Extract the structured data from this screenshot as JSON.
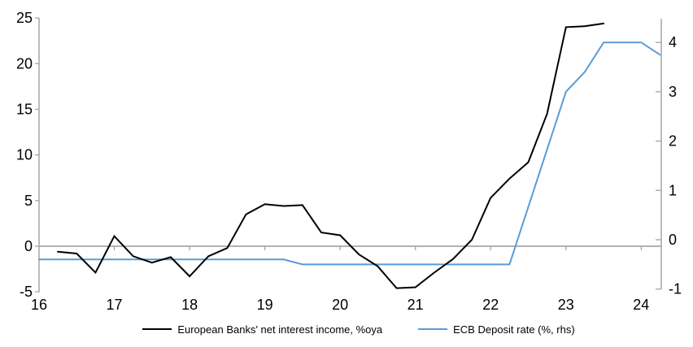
{
  "chart_data": {
    "type": "line",
    "title": "",
    "x_axis": {
      "label": "",
      "ticks": [
        "16",
        "17",
        "18",
        "19",
        "20",
        "21",
        "22",
        "23",
        "24"
      ],
      "range": [
        16,
        24.27
      ],
      "unit": "year"
    },
    "left_axis": {
      "label": "",
      "ticks": [
        -5,
        0,
        5,
        10,
        15,
        20,
        25
      ],
      "range": [
        -5,
        25
      ]
    },
    "right_axis": {
      "label": "",
      "ticks": [
        -1,
        0,
        1,
        2,
        3,
        4
      ],
      "range": [
        -1,
        4.5
      ]
    },
    "grid": "zero-line-only",
    "legend_position": "bottom",
    "colors": {
      "axis": "#a6a6a6",
      "text": "#000000"
    },
    "series": [
      {
        "name": "European Banks' net interest income, %oya",
        "axis": "left",
        "color": "#000000",
        "x": [
          16.25,
          16.5,
          16.75,
          17.0,
          17.25,
          17.5,
          17.75,
          18.0,
          18.25,
          18.5,
          18.75,
          19.0,
          19.25,
          19.5,
          19.75,
          20.0,
          20.25,
          20.5,
          20.75,
          21.0,
          21.25,
          21.5,
          21.75,
          22.0,
          22.25,
          22.5,
          22.75,
          23.0,
          23.25,
          23.5
        ],
        "values": [
          -0.6,
          -0.8,
          -2.9,
          1.1,
          -1.1,
          -1.8,
          -1.2,
          -3.3,
          -1.1,
          -0.2,
          3.5,
          4.6,
          4.4,
          4.5,
          1.5,
          1.2,
          -0.9,
          -2.2,
          -4.6,
          -4.5,
          -2.9,
          -1.4,
          0.7,
          5.3,
          7.4,
          9.2,
          14.5,
          24.0,
          24.1,
          24.4
        ]
      },
      {
        "name": "ECB Deposit rate (%, rhs)",
        "axis": "right",
        "color": "#5b9bd5",
        "x": [
          16.0,
          19.25,
          19.5,
          22.25,
          23.0,
          23.25,
          23.5,
          24.0,
          24.25
        ],
        "values": [
          -0.4,
          -0.4,
          -0.5,
          -0.5,
          3.0,
          3.4,
          4.0,
          4.0,
          3.75
        ]
      }
    ]
  }
}
